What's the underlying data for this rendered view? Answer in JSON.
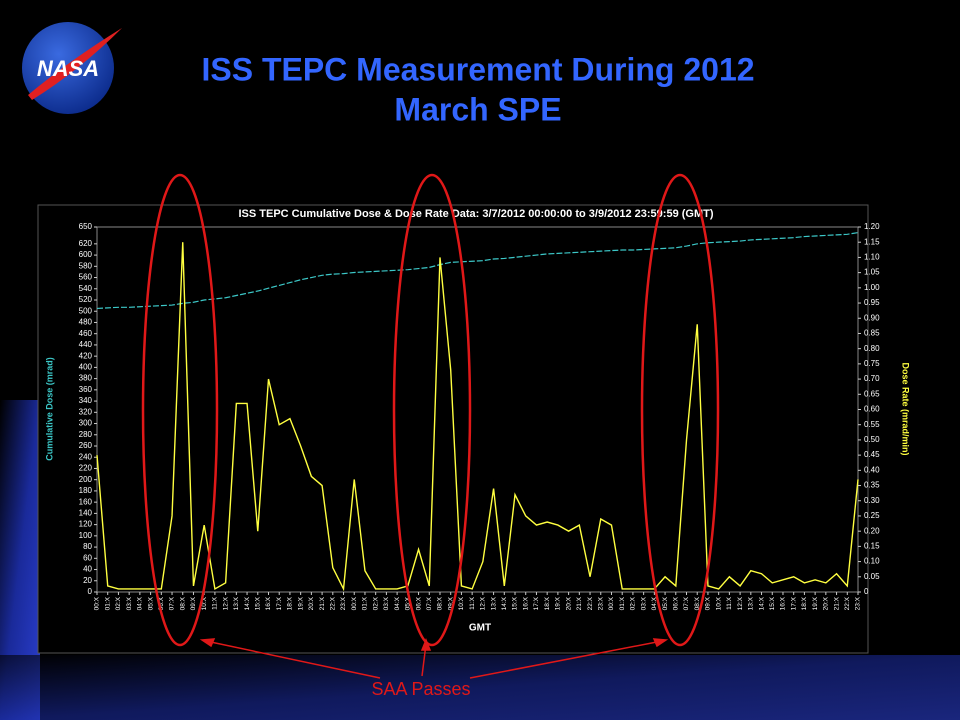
{
  "header": {
    "logo_text": "NASA",
    "title_lines": [
      "ISS TEPC Measurement During 2012",
      "March SPE"
    ]
  },
  "chart_data": {
    "type": "line",
    "title": "ISS TEPC Cumulative Dose & Dose Rate Data: 3/7/2012 00:00:00 to 3/9/2012 23:59:59 (GMT)",
    "x_label": "GMT",
    "y_label": "Cumulative Dose (mrad)",
    "y2_label": "Dose Rate (mrad/min)",
    "categories": [
      "00:X",
      "01:X",
      "02:X",
      "03:X",
      "04:X",
      "05:X",
      "06:X",
      "07:X",
      "08:X",
      "09:X",
      "10:X",
      "11:X",
      "12:X",
      "13:X",
      "14:X",
      "15:X",
      "16:X",
      "17:X",
      "18:X",
      "19:X",
      "20:X",
      "21:X",
      "22:X",
      "23:X",
      "00:X",
      "01:X",
      "02:X",
      "03:X",
      "04:X",
      "05:X",
      "06:X",
      "07:X",
      "08:X",
      "09:X",
      "10:X",
      "11:X",
      "12:X",
      "13:X",
      "14:X",
      "15:X",
      "16:X",
      "17:X",
      "18:X",
      "19:X",
      "20:X",
      "21:X",
      "22:X",
      "23:X",
      "00:X",
      "01:X",
      "02:X",
      "03:X",
      "04:X",
      "05:X",
      "06:X",
      "07:X",
      "08:X",
      "09:X",
      "10:X",
      "11:X",
      "12:X",
      "13:X",
      "14:X",
      "15:X",
      "16:X",
      "17:X",
      "18:X",
      "19:X",
      "20:X",
      "21:X",
      "22:X",
      "23:X"
    ],
    "series": [
      {
        "color": "#3cc8c8",
        "values": [
          505,
          506,
          507,
          507,
          508,
          509,
          510,
          511,
          514,
          516,
          520,
          522,
          524,
          528,
          532,
          536,
          541,
          546,
          551,
          556,
          560,
          564,
          566,
          567,
          569,
          570,
          571,
          572,
          573,
          574,
          576,
          578,
          583,
          587,
          588,
          589,
          590,
          593,
          594,
          596,
          598,
          600,
          602,
          603,
          604,
          605,
          606,
          607,
          608,
          609,
          609,
          610,
          611,
          612,
          613,
          616,
          620,
          622,
          623,
          624,
          625,
          627,
          628,
          629,
          630,
          631,
          633,
          634,
          635,
          636,
          637,
          640
        ]
      },
      {
        "color": "#ffff40",
        "axis": "y2",
        "values": [
          0.45,
          0.02,
          0.01,
          0.01,
          0.01,
          0.01,
          0.01,
          0.25,
          1.15,
          0.02,
          0.22,
          0.01,
          0.03,
          0.62,
          0.62,
          0.2,
          0.7,
          0.55,
          0.57,
          0.48,
          0.38,
          0.35,
          0.08,
          0.01,
          0.37,
          0.07,
          0.01,
          0.01,
          0.01,
          0.02,
          0.14,
          0.02,
          1.1,
          0.73,
          0.02,
          0.01,
          0.1,
          0.34,
          0.02,
          0.32,
          0.25,
          0.22,
          0.23,
          0.22,
          0.2,
          0.22,
          0.05,
          0.24,
          0.22,
          0.01,
          0.01,
          0.01,
          0.01,
          0.05,
          0.02,
          0.5,
          0.88,
          0.02,
          0.01,
          0.05,
          0.02,
          0.07,
          0.06,
          0.03,
          0.04,
          0.05,
          0.03,
          0.04,
          0.03,
          0.06,
          0.02,
          0.37
        ]
      }
    ],
    "ylim": [
      0,
      650
    ],
    "yticks": [
      0,
      20,
      40,
      60,
      80,
      100,
      120,
      140,
      160,
      180,
      200,
      220,
      240,
      260,
      280,
      300,
      320,
      340,
      360,
      380,
      400,
      420,
      440,
      460,
      480,
      500,
      520,
      540,
      560,
      580,
      600,
      620,
      650
    ],
    "y2lim": [
      0,
      1.2
    ],
    "y2ticks": [
      0,
      0.05,
      {
        "value": 0.1,
        "label": "0.10"
      },
      0.15,
      {
        "value": 0.2,
        "label": "0.20"
      },
      0.25,
      {
        "value": 0.3,
        "label": "0.30"
      },
      0.35,
      {
        "value": 0.4,
        "label": "0.40"
      },
      0.45,
      {
        "value": 0.5,
        "label": "0.50"
      },
      0.55,
      {
        "value": 0.6,
        "label": "0.60"
      },
      0.65,
      {
        "value": 0.7,
        "label": "0.70"
      },
      0.75,
      {
        "value": 0.8,
        "label": "0.80"
      },
      0.85,
      {
        "value": 0.9,
        "label": "0.90"
      },
      0.95,
      {
        "value": 1,
        "label": "1.00"
      },
      1.05,
      {
        "value": 1.1,
        "label": "1.10"
      },
      1.15,
      {
        "value": 1.2,
        "label": "1.20"
      }
    ],
    "grid": false,
    "annotation": "SAA Passes"
  }
}
